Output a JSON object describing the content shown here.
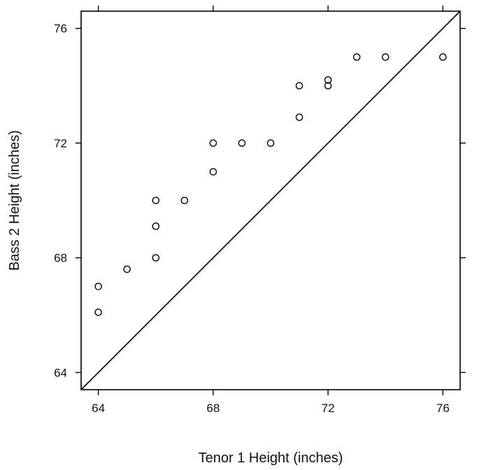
{
  "chart_data": {
    "type": "scatter",
    "xlabel": "Tenor 1 Height (inches)",
    "ylabel": "Bass 2 Height (inches)",
    "xlim": [
      63.4,
      76.6
    ],
    "ylim": [
      63.4,
      76.6
    ],
    "x_ticks": [
      64,
      68,
      72,
      76
    ],
    "y_ticks": [
      64,
      68,
      72,
      76
    ],
    "x_tick_labels": [
      "64",
      "68",
      "72",
      "76"
    ],
    "y_tick_labels": [
      "64",
      "68",
      "72",
      "76"
    ],
    "reference_line": "y = x",
    "grid": false,
    "series": [
      {
        "marker": "open-circle",
        "x": [
          64,
          64,
          65,
          66,
          66,
          66,
          67,
          68,
          68,
          69,
          70,
          71,
          71,
          72,
          72,
          73,
          74,
          76
        ],
        "y": [
          66.1,
          67.0,
          67.6,
          68.0,
          69.1,
          70.0,
          70.0,
          71.0,
          72.0,
          72.0,
          72.0,
          72.9,
          74.0,
          74.0,
          74.2,
          75.0,
          75.0,
          75.0
        ]
      }
    ]
  }
}
